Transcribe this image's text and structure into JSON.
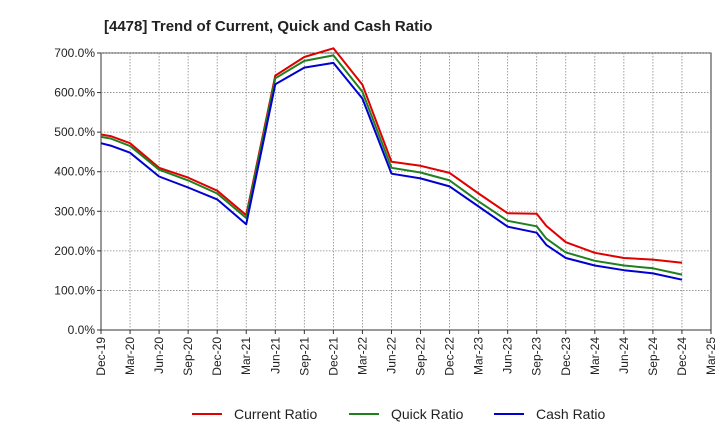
{
  "chart_data": {
    "type": "line",
    "title": "[4478]  Trend of Current, Quick and Cash Ratio",
    "xlabel": "",
    "ylabel": "",
    "ylim": [
      0,
      700
    ],
    "yticks": [
      0,
      100,
      200,
      300,
      400,
      500,
      600,
      700
    ],
    "ytick_labels": [
      "0.0%",
      "100.0%",
      "200.0%",
      "300.0%",
      "400.0%",
      "500.0%",
      "600.0%",
      "700.0%"
    ],
    "x_tick_labels": [
      "Dec-19",
      "Mar-20",
      "Jun-20",
      "Sep-20",
      "Dec-20",
      "Mar-21",
      "Jun-21",
      "Sep-21",
      "Dec-21",
      "Mar-22",
      "Jun-22",
      "Sep-22",
      "Dec-22",
      "Mar-23",
      "Jun-23",
      "Sep-23",
      "Dec-23",
      "Mar-24",
      "Jun-24",
      "Sep-24",
      "Dec-24",
      "Mar-25"
    ],
    "categories": [
      "Dec-19",
      "Jan-20",
      "Mar-20",
      "Jun-20",
      "Sep-20",
      "Dec-20",
      "Mar-21",
      "Jun-21",
      "Sep-21",
      "Dec-21",
      "Mar-22",
      "Jun-22",
      "Sep-22",
      "Dec-22",
      "Mar-23",
      "Jun-23",
      "Sep-23",
      "Oct-23",
      "Dec-23",
      "Mar-24",
      "Jun-24",
      "Sep-24",
      "Dec-24"
    ],
    "x_index": [
      0,
      0.33,
      1,
      2,
      3,
      4,
      5,
      6,
      7,
      8,
      9,
      10,
      11,
      12,
      13,
      14,
      15,
      15.33,
      16,
      17,
      18,
      19,
      20
    ],
    "grid": true,
    "legend_position": "bottom",
    "series": [
      {
        "name": "Current Ratio",
        "color": "#e00000",
        "values": [
          494,
          490,
          472,
          410,
          385,
          352,
          290,
          643,
          690,
          712,
          620,
          425,
          415,
          397,
          345,
          295,
          294,
          263,
          222,
          195,
          182,
          178,
          170
        ]
      },
      {
        "name": "Quick Ratio",
        "color": "#208020",
        "values": [
          488,
          484,
          465,
          405,
          378,
          345,
          283,
          636,
          680,
          694,
          602,
          410,
          398,
          378,
          325,
          276,
          262,
          231,
          196,
          175,
          163,
          156,
          140
        ]
      },
      {
        "name": "Cash Ratio",
        "color": "#0000d0",
        "values": [
          472,
          466,
          448,
          388,
          360,
          330,
          267,
          621,
          663,
          675,
          585,
          395,
          383,
          363,
          312,
          261,
          246,
          215,
          182,
          163,
          151,
          143,
          127
        ]
      }
    ]
  }
}
